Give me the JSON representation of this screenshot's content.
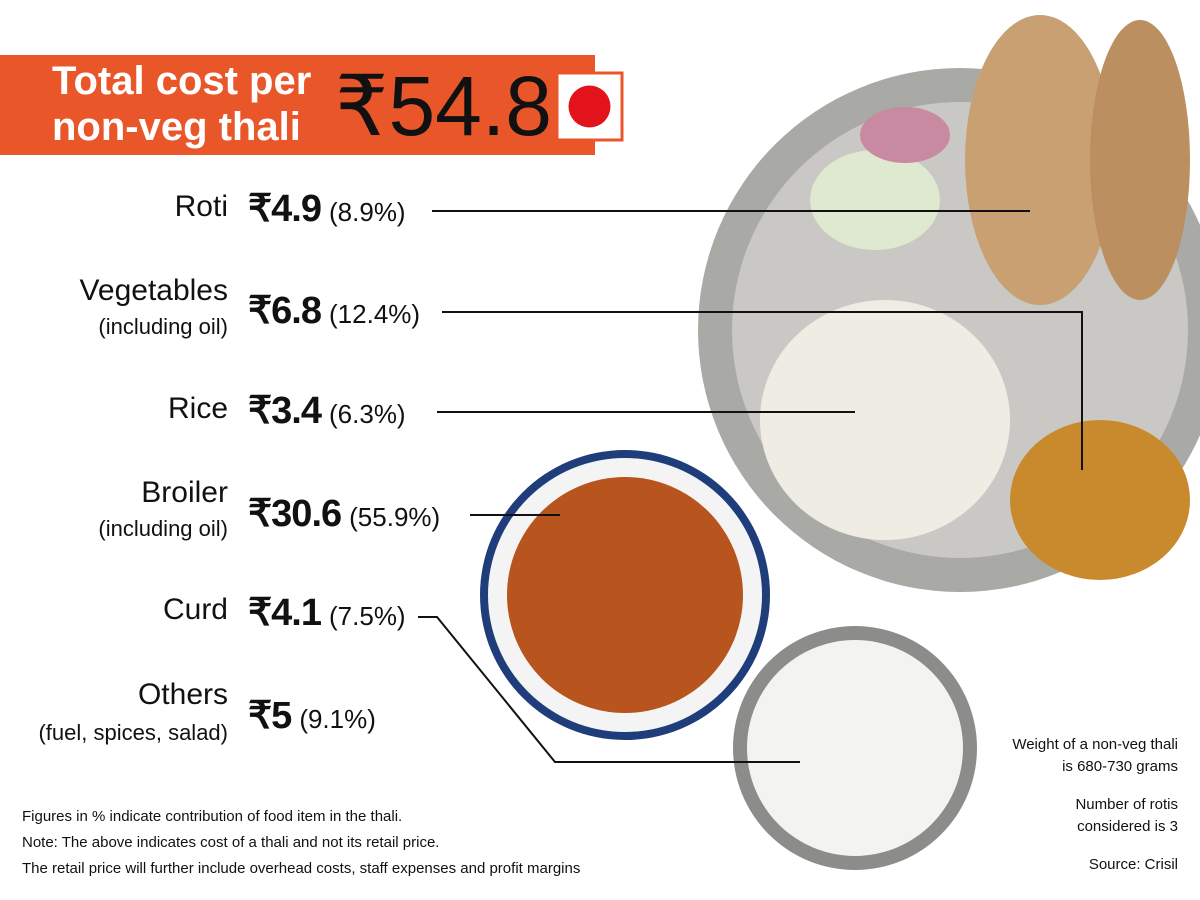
{
  "header": {
    "title_lines": [
      "Total cost per",
      "non-veg thali"
    ],
    "total": "₹54.8"
  },
  "items": [
    {
      "name": "Roti",
      "cost": "₹4.9",
      "share": "(8.9%)"
    },
    {
      "name": "Vegetables",
      "note": "(including oil)",
      "cost": "₹6.8",
      "share": "(12.4%)"
    },
    {
      "name": "Rice",
      "cost": "₹3.4",
      "share": "(6.3%)"
    },
    {
      "name": "Broiler",
      "note": "(including oil)",
      "cost": "₹30.6",
      "share": "(55.9%)"
    },
    {
      "name": "Curd",
      "cost": "₹4.1",
      "share": "(7.5%)"
    },
    {
      "name": "Others",
      "note": "(fuel, spices, salad)",
      "cost": "₹5",
      "share": "(9.1%)"
    }
  ],
  "footnotes": [
    "Figures in % indicate contribution of food item in the thali.",
    "Note: The above indicates cost of a thali and not its retail price.",
    "The retail price will further include overhead costs, staff expenses  and profit margins"
  ],
  "side_notes": [
    [
      "Weight of a non-veg thali",
      "is 680-730 grams"
    ],
    [
      "Number of rotis",
      "considered is 3"
    ],
    [
      "Source: Crisil"
    ]
  ]
}
